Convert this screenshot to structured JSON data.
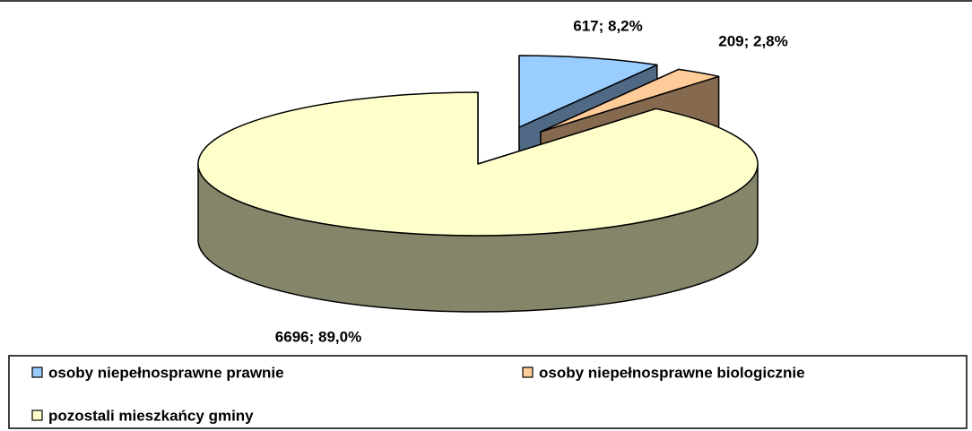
{
  "chart_data": {
    "type": "pie",
    "categories": [
      "osoby niepełnosprawne prawnie",
      "osoby niepełnosprawne biologicznie",
      "pozostali mieszkańcy gminy"
    ],
    "values": [
      617,
      209,
      6696
    ],
    "value_labels": [
      "617; 8,2%",
      "209; 2,8%",
      "6696; 89,0%"
    ],
    "colors": [
      "#99ccff",
      "#ffcc99",
      "#ffffcc"
    ],
    "legend": "bottom"
  }
}
